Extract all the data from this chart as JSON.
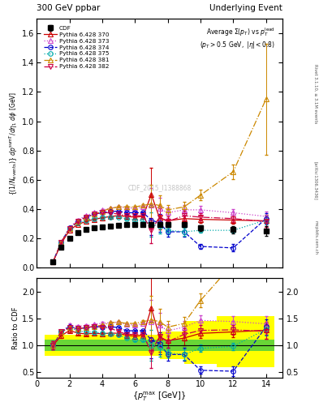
{
  "title_left": "300 GeV ppbar",
  "title_right": "Underlying Event",
  "watermark": "CDF_2015_I1388868",
  "right_label": "Rivet 3.1.10, ≥ 3.1M events",
  "arxiv_label": "[arXiv:1306.3436]",
  "mcplots_label": "mcplots.cern.ch",
  "ylabel_ratio": "Ratio to CDF",
  "xlim": [
    0,
    15
  ],
  "ylim_main": [
    0,
    1.7
  ],
  "ylim_ratio": [
    0.4,
    2.25
  ],
  "yticks_main": [
    0.0,
    0.2,
    0.4,
    0.6,
    0.8,
    1.0,
    1.2,
    1.4,
    1.6
  ],
  "yticks_ratio": [
    0.5,
    1.0,
    1.5,
    2.0
  ],
  "cdf_x": [
    1.0,
    1.5,
    2.0,
    2.5,
    3.0,
    3.5,
    4.0,
    4.5,
    5.0,
    5.5,
    6.0,
    6.5,
    7.0,
    7.5,
    8.0,
    9.0,
    10.0,
    12.0,
    14.0
  ],
  "cdf_y": [
    0.04,
    0.14,
    0.2,
    0.24,
    0.26,
    0.27,
    0.28,
    0.285,
    0.29,
    0.295,
    0.295,
    0.295,
    0.295,
    0.295,
    0.295,
    0.295,
    0.27,
    0.26,
    0.25
  ],
  "cdf_yerr": [
    0.005,
    0.008,
    0.008,
    0.008,
    0.008,
    0.008,
    0.008,
    0.008,
    0.008,
    0.008,
    0.008,
    0.008,
    0.008,
    0.008,
    0.012,
    0.015,
    0.018,
    0.025,
    0.035
  ],
  "py370_x": [
    1.0,
    1.5,
    2.0,
    2.5,
    3.0,
    3.5,
    4.0,
    4.5,
    5.0,
    5.5,
    6.0,
    6.5,
    7.0,
    7.5,
    8.0,
    9.0,
    10.0,
    12.0,
    14.0
  ],
  "py370_y": [
    0.04,
    0.165,
    0.255,
    0.295,
    0.315,
    0.33,
    0.34,
    0.35,
    0.355,
    0.35,
    0.345,
    0.35,
    0.5,
    0.34,
    0.32,
    0.335,
    0.33,
    0.325,
    0.32
  ],
  "py370_yerr": [
    0.003,
    0.006,
    0.006,
    0.006,
    0.006,
    0.006,
    0.006,
    0.006,
    0.006,
    0.006,
    0.006,
    0.006,
    0.18,
    0.08,
    0.04,
    0.04,
    0.025,
    0.025,
    0.04
  ],
  "py370_color": "#cc0000",
  "py370_style": "-",
  "py370_marker": "^",
  "py373_x": [
    1.0,
    1.5,
    2.0,
    2.5,
    3.0,
    3.5,
    4.0,
    4.5,
    5.0,
    5.5,
    6.0,
    6.5,
    7.0,
    7.5,
    8.0,
    9.0,
    10.0,
    12.0,
    14.0
  ],
  "py373_y": [
    0.04,
    0.175,
    0.275,
    0.325,
    0.355,
    0.375,
    0.395,
    0.405,
    0.415,
    0.41,
    0.405,
    0.415,
    0.425,
    0.405,
    0.375,
    0.395,
    0.395,
    0.375,
    0.35
  ],
  "py373_yerr": [
    0.003,
    0.006,
    0.006,
    0.006,
    0.006,
    0.006,
    0.006,
    0.006,
    0.006,
    0.006,
    0.006,
    0.006,
    0.12,
    0.07,
    0.035,
    0.035,
    0.025,
    0.025,
    0.035
  ],
  "py373_color": "#cc44cc",
  "py373_style": ":",
  "py373_marker": "^",
  "py374_x": [
    1.0,
    1.5,
    2.0,
    2.5,
    3.0,
    3.5,
    4.0,
    4.5,
    5.0,
    5.5,
    6.0,
    6.5,
    7.0,
    7.5,
    8.0,
    9.0,
    10.0,
    12.0,
    14.0
  ],
  "py374_y": [
    0.04,
    0.175,
    0.27,
    0.315,
    0.345,
    0.365,
    0.375,
    0.385,
    0.385,
    0.375,
    0.375,
    0.375,
    0.325,
    0.305,
    0.245,
    0.245,
    0.145,
    0.135,
    0.335
  ],
  "py374_yerr": [
    0.003,
    0.006,
    0.006,
    0.006,
    0.006,
    0.006,
    0.006,
    0.006,
    0.006,
    0.006,
    0.006,
    0.006,
    0.1,
    0.06,
    0.035,
    0.035,
    0.018,
    0.025,
    0.035
  ],
  "py374_color": "#0000cc",
  "py374_style": "--",
  "py374_marker": "o",
  "py375_x": [
    1.0,
    1.5,
    2.0,
    2.5,
    3.0,
    3.5,
    4.0,
    4.5,
    5.0,
    5.5,
    6.0,
    6.5,
    7.0,
    7.5,
    8.0,
    9.0,
    10.0,
    12.0,
    14.0
  ],
  "py375_y": [
    0.04,
    0.175,
    0.265,
    0.305,
    0.325,
    0.335,
    0.345,
    0.345,
    0.345,
    0.335,
    0.325,
    0.325,
    0.295,
    0.285,
    0.255,
    0.245,
    0.255,
    0.255,
    0.325
  ],
  "py375_yerr": [
    0.003,
    0.006,
    0.006,
    0.006,
    0.006,
    0.006,
    0.006,
    0.006,
    0.006,
    0.006,
    0.006,
    0.006,
    0.085,
    0.05,
    0.028,
    0.028,
    0.018,
    0.018,
    0.028
  ],
  "py375_color": "#00aaaa",
  "py375_style": ":",
  "py375_marker": "o",
  "py381_x": [
    1.0,
    1.5,
    2.0,
    2.5,
    3.0,
    3.5,
    4.0,
    4.5,
    5.0,
    5.5,
    6.0,
    6.5,
    7.0,
    7.5,
    8.0,
    9.0,
    10.0,
    12.0,
    14.0
  ],
  "py381_y": [
    0.04,
    0.175,
    0.265,
    0.315,
    0.345,
    0.365,
    0.385,
    0.405,
    0.415,
    0.415,
    0.415,
    0.425,
    0.435,
    0.425,
    0.395,
    0.415,
    0.495,
    0.655,
    1.15
  ],
  "py381_yerr": [
    0.003,
    0.006,
    0.006,
    0.006,
    0.006,
    0.006,
    0.006,
    0.006,
    0.006,
    0.006,
    0.006,
    0.006,
    0.13,
    0.07,
    0.035,
    0.035,
    0.035,
    0.05,
    0.38
  ],
  "py381_color": "#cc8800",
  "py381_style": "-.",
  "py381_marker": "^",
  "py382_x": [
    1.0,
    1.5,
    2.0,
    2.5,
    3.0,
    3.5,
    4.0,
    4.5,
    5.0,
    5.5,
    6.0,
    6.5,
    7.0,
    7.5,
    8.0,
    9.0,
    10.0,
    12.0,
    14.0
  ],
  "py382_y": [
    0.04,
    0.175,
    0.265,
    0.315,
    0.345,
    0.365,
    0.375,
    0.375,
    0.365,
    0.355,
    0.355,
    0.355,
    0.255,
    0.345,
    0.315,
    0.355,
    0.345,
    0.335,
    0.315
  ],
  "py382_yerr": [
    0.003,
    0.006,
    0.006,
    0.006,
    0.006,
    0.006,
    0.006,
    0.006,
    0.006,
    0.006,
    0.006,
    0.006,
    0.085,
    0.06,
    0.035,
    0.035,
    0.025,
    0.025,
    0.035
  ],
  "py382_color": "#cc0044",
  "py382_style": "-.",
  "py382_marker": "v",
  "band_x_edges": [
    0.5,
    2.0,
    3.5,
    5.0,
    6.5,
    7.5,
    9.0,
    11.0,
    14.5
  ],
  "band_green_lo": [
    0.9,
    0.9,
    0.9,
    0.9,
    0.9,
    0.9,
    0.9,
    0.9
  ],
  "band_green_hi": [
    1.1,
    1.1,
    1.1,
    1.1,
    1.1,
    1.1,
    1.1,
    1.1
  ],
  "band_yellow_lo": [
    0.8,
    0.8,
    0.8,
    0.8,
    0.8,
    0.75,
    0.65,
    0.6
  ],
  "band_yellow_hi": [
    1.2,
    1.2,
    1.2,
    1.2,
    1.2,
    1.25,
    1.45,
    1.55
  ]
}
